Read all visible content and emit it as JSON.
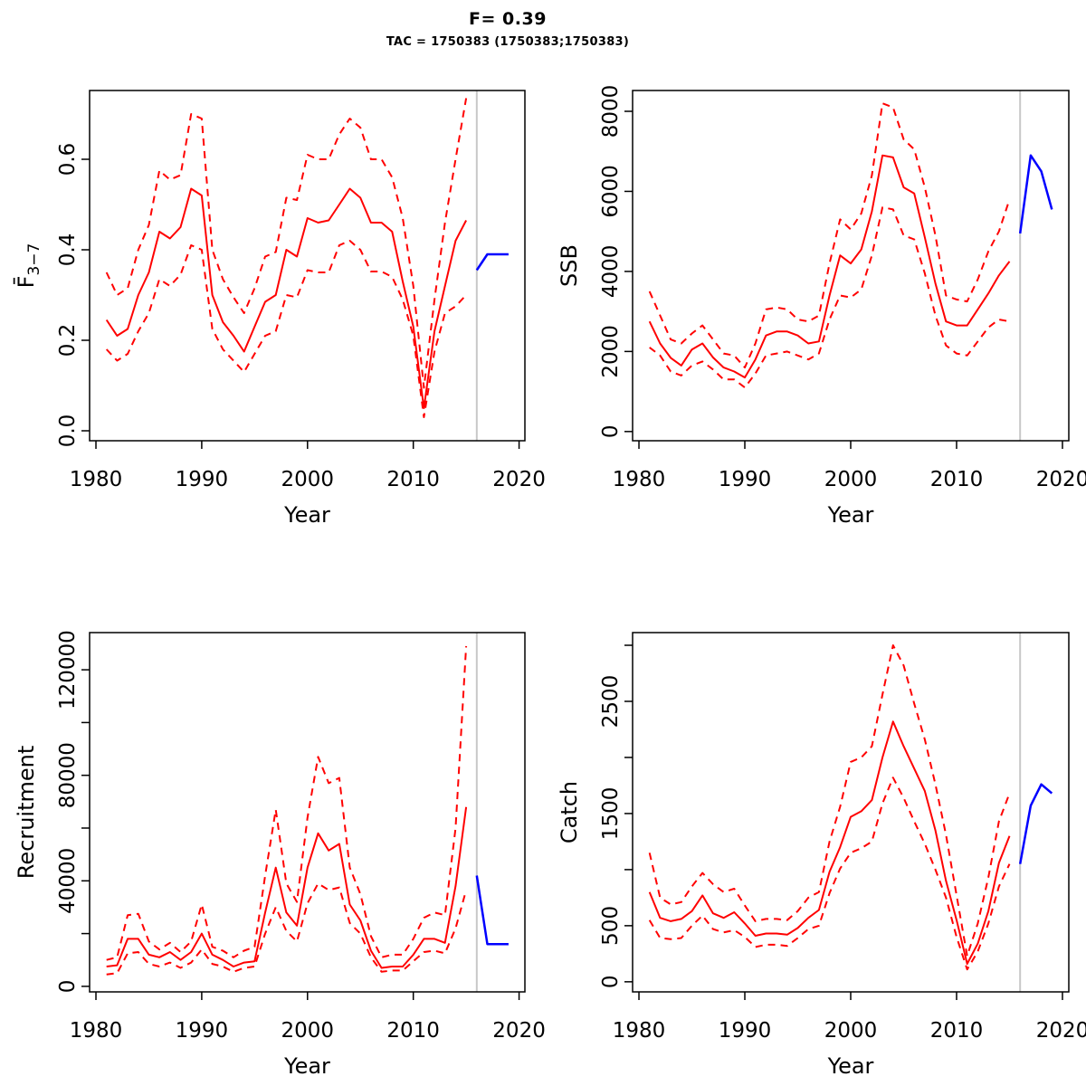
{
  "title": "F= 0.39",
  "subtitle": "TAC = 1750383 (1750383;1750383)",
  "colors": {
    "historic": "#FF0000",
    "forecast": "#0000FF",
    "divider": "#C8C8C8",
    "axis": "#000000",
    "background": "#FFFFFF"
  },
  "chart_data": [
    {
      "id": "fbar",
      "type": "line",
      "ylabel": "F̄3−7",
      "ylabel_rich": {
        "base": "F̄",
        "subscript": "3−7"
      },
      "xlabel": "Year",
      "xlim": [
        1979.4,
        2020.55
      ],
      "ylim": [
        -0.022,
        0.752
      ],
      "divider_x": 2016,
      "grid": false,
      "legend": "none",
      "xticks": [
        {
          "v": 1980,
          "label": "1980"
        },
        {
          "v": 1990,
          "label": "1990"
        },
        {
          "v": 2000,
          "label": "2000"
        },
        {
          "v": 2010,
          "label": "2010"
        },
        {
          "v": 2020,
          "label": "2020"
        }
      ],
      "yticks": [
        {
          "v": 0.0,
          "label": "0.0"
        },
        {
          "v": 0.2,
          "label": "0.2"
        },
        {
          "v": 0.4,
          "label": "0.4"
        },
        {
          "v": 0.6,
          "label": "0.6"
        }
      ],
      "yticks_minor": [],
      "years": [
        1981,
        1982,
        1983,
        1984,
        1985,
        1986,
        1987,
        1988,
        1989,
        1990,
        1991,
        1992,
        1993,
        1994,
        1995,
        1996,
        1997,
        1998,
        1999,
        2000,
        2001,
        2002,
        2003,
        2004,
        2005,
        2006,
        2007,
        2008,
        2009,
        2010,
        2011,
        2012,
        2013,
        2014,
        2015
      ],
      "series": [
        {
          "name": "median",
          "style": "solid",
          "values": [
            0.245,
            0.21,
            0.225,
            0.3,
            0.35,
            0.44,
            0.425,
            0.45,
            0.535,
            0.52,
            0.3,
            0.24,
            0.21,
            0.175,
            0.23,
            0.285,
            0.3,
            0.4,
            0.385,
            0.47,
            0.46,
            0.465,
            0.5,
            0.535,
            0.515,
            0.46,
            0.46,
            0.44,
            0.33,
            0.23,
            0.05,
            0.22,
            0.32,
            0.42,
            0.465
          ]
        },
        {
          "name": "upper",
          "style": "dashed",
          "values": [
            0.35,
            0.3,
            0.315,
            0.4,
            0.455,
            0.575,
            0.555,
            0.565,
            0.7,
            0.69,
            0.4,
            0.335,
            0.295,
            0.26,
            0.315,
            0.385,
            0.395,
            0.515,
            0.51,
            0.61,
            0.6,
            0.6,
            0.655,
            0.69,
            0.67,
            0.6,
            0.6,
            0.56,
            0.47,
            0.32,
            0.095,
            0.29,
            0.46,
            0.6,
            0.735
          ]
        },
        {
          "name": "lower",
          "style": "dashed",
          "values": [
            0.18,
            0.155,
            0.17,
            0.22,
            0.26,
            0.335,
            0.32,
            0.345,
            0.41,
            0.4,
            0.225,
            0.18,
            0.155,
            0.13,
            0.17,
            0.21,
            0.22,
            0.3,
            0.295,
            0.355,
            0.35,
            0.35,
            0.41,
            0.42,
            0.4,
            0.352,
            0.352,
            0.34,
            0.29,
            0.21,
            0.03,
            0.175,
            0.26,
            0.275,
            0.3
          ]
        }
      ],
      "forecast": {
        "name": "forecast",
        "years": [
          2016,
          2017,
          2018,
          2019
        ],
        "values": [
          0.355,
          0.39,
          0.39,
          0.39
        ]
      }
    },
    {
      "id": "ssb",
      "type": "line",
      "ylabel": "SSB",
      "xlabel": "Year",
      "xlim": [
        1979.4,
        2020.6
      ],
      "ylim": [
        -230,
        8520
      ],
      "divider_x": 2016,
      "grid": false,
      "legend": "none",
      "xticks": [
        {
          "v": 1980,
          "label": "1980"
        },
        {
          "v": 1990,
          "label": "1990"
        },
        {
          "v": 2000,
          "label": "2000"
        },
        {
          "v": 2010,
          "label": "2010"
        },
        {
          "v": 2020,
          "label": "2020"
        }
      ],
      "yticks": [
        {
          "v": 0,
          "label": "0"
        },
        {
          "v": 2000,
          "label": "2000"
        },
        {
          "v": 4000,
          "label": "4000"
        },
        {
          "v": 6000,
          "label": "6000"
        },
        {
          "v": 8000,
          "label": "8000"
        }
      ],
      "yticks_minor": [],
      "years": [
        1981,
        1982,
        1983,
        1984,
        1985,
        1986,
        1987,
        1988,
        1989,
        1990,
        1991,
        1992,
        1993,
        1994,
        1995,
        1996,
        1997,
        1998,
        1999,
        2000,
        2001,
        2002,
        2003,
        2004,
        2005,
        2006,
        2007,
        2008,
        2009,
        2010,
        2011,
        2012,
        2013,
        2014,
        2015
      ],
      "series": [
        {
          "name": "median",
          "style": "solid",
          "values": [
            2750,
            2200,
            1840,
            1650,
            2050,
            2200,
            1850,
            1600,
            1500,
            1350,
            1800,
            2400,
            2500,
            2500,
            2400,
            2200,
            2250,
            3400,
            4400,
            4200,
            4550,
            5500,
            6900,
            6850,
            6100,
            5950,
            4850,
            3700,
            2750,
            2650,
            2650,
            3050,
            3450,
            3900,
            4250
          ]
        },
        {
          "name": "upper",
          "style": "dashed",
          "values": [
            3500,
            2900,
            2300,
            2200,
            2450,
            2650,
            2300,
            1950,
            1900,
            1600,
            2200,
            3050,
            3100,
            3050,
            2800,
            2750,
            2900,
            4200,
            5300,
            5050,
            5450,
            6400,
            8200,
            8100,
            7300,
            7050,
            6100,
            4900,
            3400,
            3300,
            3250,
            3800,
            4500,
            5000,
            5800
          ]
        },
        {
          "name": "lower",
          "style": "dashed",
          "values": [
            2100,
            1900,
            1500,
            1400,
            1650,
            1750,
            1550,
            1300,
            1300,
            1100,
            1450,
            1900,
            1950,
            2000,
            1900,
            1800,
            1950,
            2800,
            3400,
            3350,
            3550,
            4400,
            5600,
            5550,
            4900,
            4800,
            3950,
            2900,
            2150,
            1950,
            1900,
            2250,
            2600,
            2800,
            2750
          ]
        }
      ],
      "forecast": {
        "name": "forecast",
        "years": [
          2016,
          2017,
          2018,
          2019
        ],
        "values": [
          4950,
          6900,
          6500,
          5550
        ]
      }
    },
    {
      "id": "recruitment",
      "type": "line",
      "ylabel": "Recruitment",
      "xlabel": "Year",
      "xlim": [
        1979.4,
        2020.55
      ],
      "ylim": [
        -2100,
        134100
      ],
      "divider_x": 2016,
      "grid": false,
      "legend": "none",
      "xticks": [
        {
          "v": 1980,
          "label": "1980"
        },
        {
          "v": 1990,
          "label": "1990"
        },
        {
          "v": 2000,
          "label": "2000"
        },
        {
          "v": 2010,
          "label": "2010"
        },
        {
          "v": 2020,
          "label": "2020"
        }
      ],
      "yticks": [
        {
          "v": 0,
          "label": "0"
        },
        {
          "v": 40000,
          "label": "40000"
        },
        {
          "v": 80000,
          "label": "80000"
        },
        {
          "v": 120000,
          "label": "120000"
        }
      ],
      "yticks_minor": [
        20000,
        60000,
        100000
      ],
      "years": [
        1981,
        1982,
        1983,
        1984,
        1985,
        1986,
        1987,
        1988,
        1989,
        1990,
        1991,
        1992,
        1993,
        1994,
        1995,
        1996,
        1997,
        1998,
        1999,
        2000,
        2001,
        2002,
        2003,
        2004,
        2005,
        2006,
        2007,
        2008,
        2009,
        2010,
        2011,
        2012,
        2013,
        2014,
        2015
      ],
      "series": [
        {
          "name": "median",
          "style": "solid",
          "values": [
            7500,
            8000,
            18000,
            18000,
            12000,
            11000,
            13000,
            10000,
            13000,
            20000,
            12000,
            10000,
            7500,
            9000,
            9500,
            28000,
            45000,
            28000,
            23000,
            45000,
            58000,
            51500,
            54000,
            31000,
            25000,
            13500,
            7000,
            7500,
            7500,
            12000,
            18000,
            18000,
            16500,
            38000,
            68000
          ]
        },
        {
          "name": "upper",
          "style": "dashed",
          "values": [
            10000,
            11000,
            27000,
            27500,
            17000,
            14000,
            16500,
            13000,
            17000,
            31000,
            15000,
            13500,
            11000,
            13500,
            15000,
            42000,
            67000,
            39000,
            32000,
            64000,
            87000,
            77000,
            79000,
            45000,
            35000,
            19000,
            11000,
            12000,
            12000,
            18000,
            26000,
            28000,
            27000,
            60000,
            129000
          ]
        },
        {
          "name": "lower",
          "style": "dashed",
          "values": [
            4500,
            5000,
            12500,
            13000,
            8500,
            7500,
            9000,
            7000,
            9000,
            14000,
            8500,
            7500,
            5500,
            7000,
            7500,
            20000,
            30000,
            21000,
            17000,
            31500,
            39000,
            36500,
            37500,
            24000,
            20000,
            11000,
            5500,
            6000,
            6000,
            9500,
            13000,
            13500,
            12500,
            22000,
            36500
          ]
        }
      ],
      "forecast": {
        "name": "forecast",
        "years": [
          2016,
          2017,
          2018,
          2019
        ],
        "values": [
          42000,
          16000,
          16000,
          16000
        ]
      }
    },
    {
      "id": "catch",
      "type": "line",
      "ylabel": "Catch",
      "xlabel": "Year",
      "xlim": [
        1979.4,
        2020.6
      ],
      "ylim": [
        -90,
        3113
      ],
      "divider_x": 2016,
      "grid": false,
      "legend": "none",
      "xticks": [
        {
          "v": 1980,
          "label": "1980"
        },
        {
          "v": 1990,
          "label": "1990"
        },
        {
          "v": 2000,
          "label": "2000"
        },
        {
          "v": 2010,
          "label": "2010"
        },
        {
          "v": 2020,
          "label": "2020"
        }
      ],
      "yticks": [
        {
          "v": 0,
          "label": "0"
        },
        {
          "v": 500,
          "label": "500"
        },
        {
          "v": 1500,
          "label": "1500"
        },
        {
          "v": 2500,
          "label": "2500"
        }
      ],
      "yticks_minor": [
        1000,
        2000,
        3000
      ],
      "years": [
        1981,
        1982,
        1983,
        1984,
        1985,
        1986,
        1987,
        1988,
        1989,
        1990,
        1991,
        1992,
        1993,
        1994,
        1995,
        1996,
        1997,
        1998,
        1999,
        2000,
        2001,
        2002,
        2003,
        2004,
        2005,
        2006,
        2007,
        2008,
        2009,
        2010,
        2011,
        2012,
        2013,
        2014,
        2015
      ],
      "series": [
        {
          "name": "median",
          "style": "solid",
          "values": [
            800,
            570,
            540,
            560,
            630,
            770,
            610,
            570,
            620,
            520,
            410,
            430,
            430,
            420,
            480,
            570,
            640,
            980,
            1200,
            1470,
            1520,
            1620,
            2000,
            2320,
            2100,
            1900,
            1700,
            1350,
            900,
            550,
            160,
            340,
            630,
            1060,
            1300
          ]
        },
        {
          "name": "upper",
          "style": "dashed",
          "values": [
            1150,
            750,
            690,
            710,
            850,
            970,
            870,
            800,
            830,
            680,
            540,
            560,
            560,
            550,
            630,
            750,
            800,
            1250,
            1560,
            1960,
            2000,
            2100,
            2560,
            3000,
            2820,
            2480,
            2160,
            1760,
            1310,
            770,
            230,
            520,
            930,
            1430,
            1680
          ]
        },
        {
          "name": "lower",
          "style": "dashed",
          "values": [
            550,
            390,
            380,
            390,
            500,
            590,
            470,
            440,
            460,
            400,
            310,
            330,
            330,
            320,
            390,
            470,
            500,
            790,
            1010,
            1150,
            1190,
            1250,
            1590,
            1820,
            1640,
            1430,
            1230,
            1000,
            750,
            400,
            110,
            270,
            520,
            850,
            1050
          ]
        }
      ],
      "forecast": {
        "name": "forecast",
        "years": [
          2016,
          2017,
          2018,
          2019
        ],
        "values": [
          1050,
          1570,
          1760,
          1680
        ]
      }
    }
  ]
}
